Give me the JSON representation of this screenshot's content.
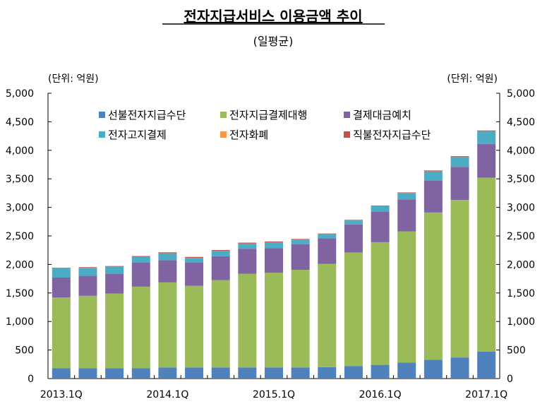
{
  "chart_data": {
    "type": "bar",
    "stacked": true,
    "title": "전자지급서비스 이용금액 추이",
    "subtitle": "(일평균)",
    "unit_left": "(단위: 억원)",
    "unit_right": "(단위: 억원)",
    "ylim": [
      0,
      5000
    ],
    "yticks": [
      0,
      500,
      1000,
      1500,
      2000,
      2500,
      3000,
      3500,
      4000,
      4500,
      5000
    ],
    "ytick_labels": [
      "0",
      "500",
      "1,000",
      "1,500",
      "2,000",
      "2,500",
      "3,000",
      "3,500",
      "4,000",
      "4,500",
      "5,000"
    ],
    "categories": [
      "2013.1Q",
      "2013.2Q",
      "2013.3Q",
      "2013.4Q",
      "2014.1Q",
      "2014.2Q",
      "2014.3Q",
      "2014.4Q",
      "2015.1Q",
      "2015.2Q",
      "2015.3Q",
      "2015.4Q",
      "2016.1Q",
      "2016.2Q",
      "2016.3Q",
      "2016.4Q",
      "2017.1Q"
    ],
    "xtick_labels": [
      "2013.1Q",
      "2014.1Q",
      "2015.1Q",
      "2016.1Q",
      "2017.1Q"
    ],
    "legend_position": "top-center",
    "grid": false,
    "series": [
      {
        "name": "선불전자지급수단",
        "color": "#4f81bd",
        "values": [
          180,
          180,
          180,
          180,
          195,
          195,
          195,
          195,
          195,
          195,
          200,
          220,
          240,
          280,
          330,
          370,
          470
        ]
      },
      {
        "name": "전자지급결제대행",
        "color": "#9bbb59",
        "values": [
          1240,
          1270,
          1310,
          1430,
          1490,
          1430,
          1530,
          1640,
          1660,
          1710,
          1810,
          1990,
          2150,
          2300,
          2580,
          2760,
          3050
        ]
      },
      {
        "name": "결제대금예치",
        "color": "#8064a2",
        "values": [
          350,
          350,
          350,
          420,
          390,
          410,
          420,
          440,
          430,
          450,
          450,
          490,
          540,
          560,
          560,
          580,
          590
        ]
      },
      {
        "name": "전자고지결제",
        "color": "#4bacc6",
        "values": [
          160,
          140,
          120,
          100,
          120,
          80,
          90,
          90,
          100,
          80,
          70,
          70,
          90,
          110,
          160,
          170,
          220
        ]
      },
      {
        "name": "전자화폐",
        "color": "#f79646",
        "values": [
          2,
          2,
          2,
          2,
          2,
          2,
          2,
          2,
          2,
          2,
          2,
          2,
          2,
          2,
          2,
          2,
          2
        ]
      },
      {
        "name": "직불전자지급수단",
        "color": "#c0504d",
        "values": [
          10,
          10,
          10,
          15,
          15,
          15,
          15,
          15,
          15,
          10,
          10,
          10,
          10,
          10,
          15,
          15,
          15
        ]
      }
    ]
  }
}
